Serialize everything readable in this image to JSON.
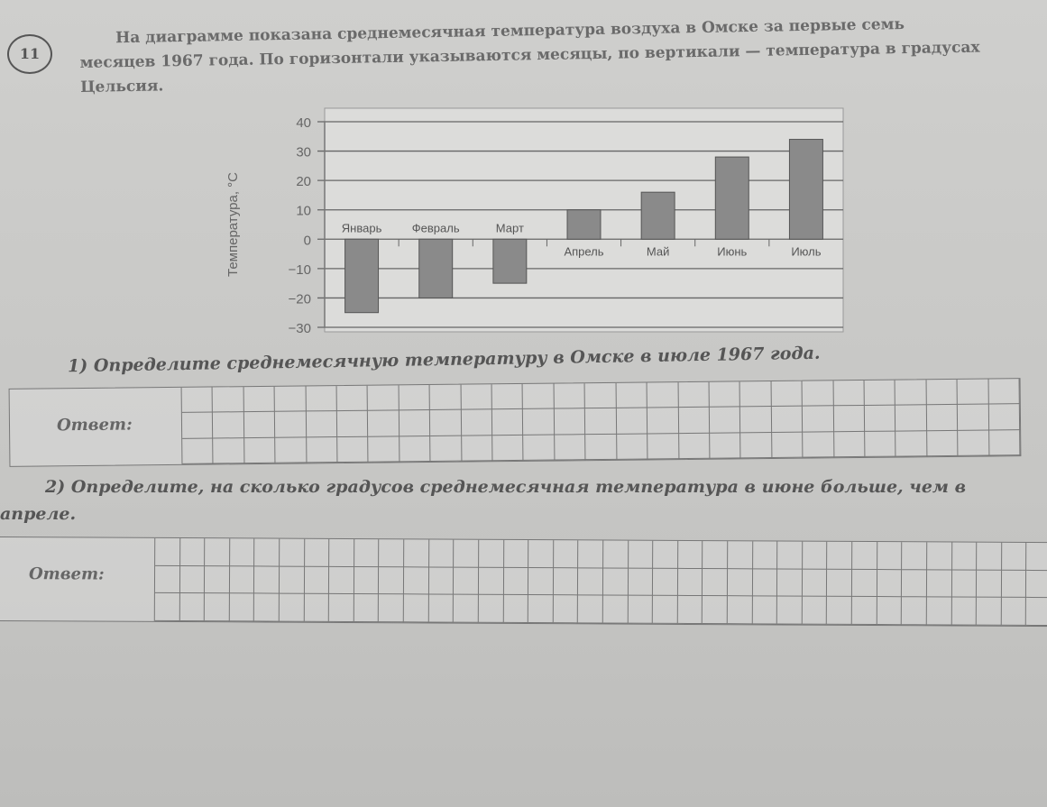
{
  "task_number": "11",
  "intro": "На диаграмме показана среднемесячная температура воздуха в Омске за первые семь месяцев 1967 года. По горизонтали указываются месяцы, по вертикали — температура в градусах Цельсия.",
  "question1": "1) Определите среднемесячную температуру в Омске в июле 1967 года.",
  "question2": "2) Определите, на сколько градусов среднемесячная температура в июне больше, чем в апреле.",
  "answer_label": "Ответ:",
  "chart_data": {
    "type": "bar",
    "ylabel": "Температура, °С",
    "categories": [
      "Январь",
      "Февраль",
      "Март",
      "Апрель",
      "Май",
      "Июнь",
      "Июль"
    ],
    "values": [
      -25,
      -20,
      -15,
      10,
      16,
      28,
      34
    ],
    "ylim": [
      -30,
      40
    ],
    "yticks": [
      "-30",
      "-20",
      "-10",
      "0",
      "10",
      "20",
      "30",
      "40"
    ],
    "grid": true,
    "bar_color": "#8a8a8a"
  }
}
